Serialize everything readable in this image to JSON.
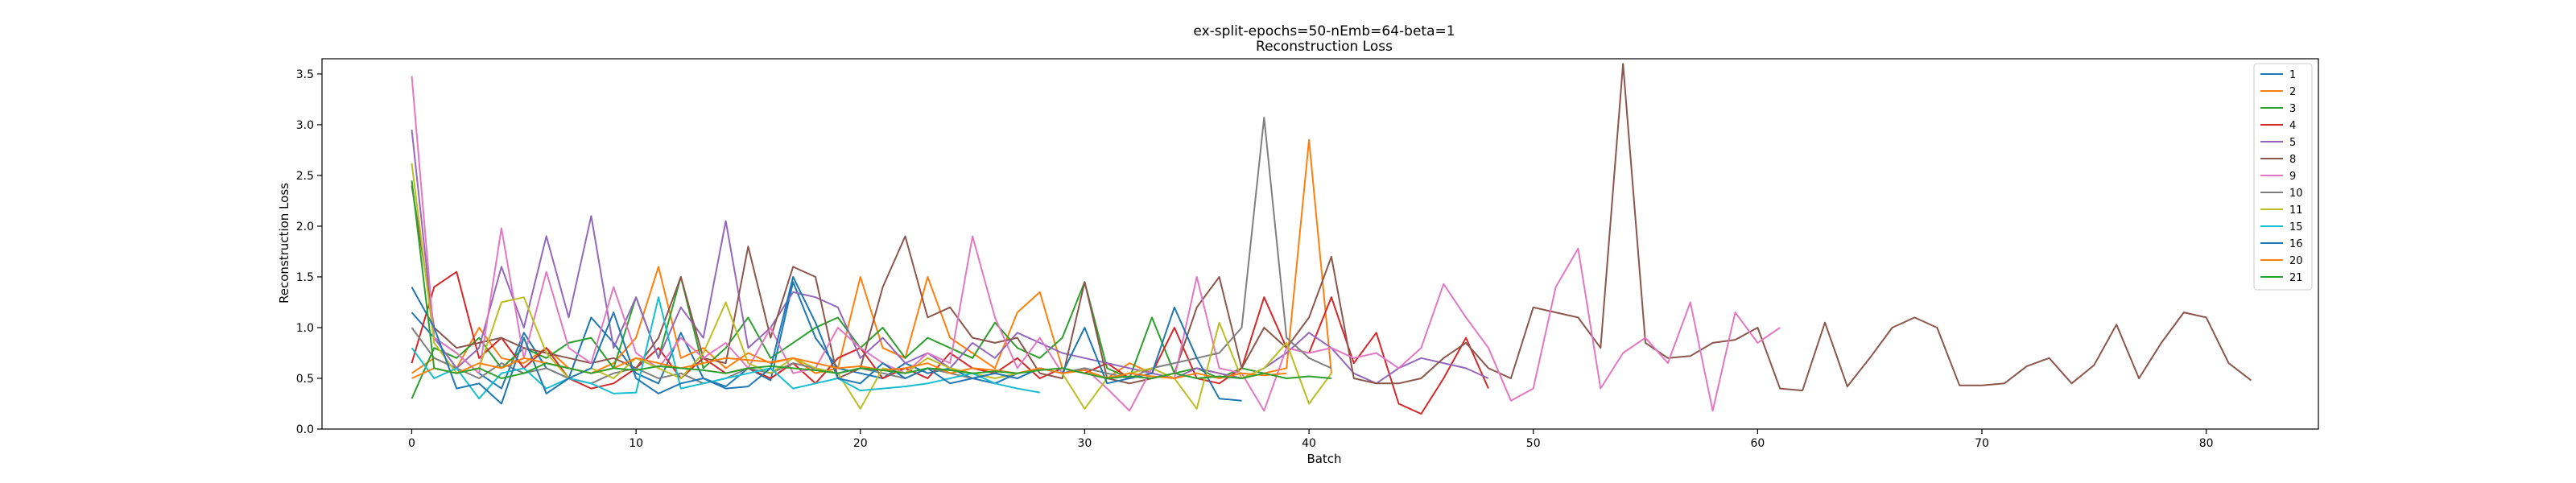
{
  "chart_data": {
    "type": "line",
    "title": "ex-split-epochs=50-nEmb=64-beta=1",
    "subtitle": "Reconstruction Loss",
    "xlabel": "Batch",
    "ylabel": "Reconstruction Loss",
    "xlim": [
      -4,
      85
    ],
    "ylim": [
      0,
      3.65
    ],
    "xticks": [
      0,
      10,
      20,
      30,
      40,
      50,
      60,
      70,
      80
    ],
    "yticks": [
      0.0,
      0.5,
      1.0,
      1.5,
      2.0,
      2.5,
      3.0,
      3.5
    ],
    "xtick_labels": [
      "0",
      "10",
      "20",
      "30",
      "40",
      "50",
      "60",
      "70",
      "80"
    ],
    "ytick_labels": [
      "0.0",
      "0.5",
      "1.0",
      "1.5",
      "2.0",
      "2.5",
      "3.0",
      "3.5"
    ],
    "grid": false,
    "legend_position": "top-right",
    "series": [
      {
        "name": "1",
        "color": "#1f77b4",
        "values": [
          1.15,
          0.9,
          0.75,
          0.55,
          0.4,
          0.95,
          0.6,
          0.5,
          1.1,
          0.85,
          0.55,
          0.45,
          0.95,
          0.5,
          0.42,
          0.6,
          0.48,
          1.45,
          0.9,
          0.6,
          0.55,
          0.5,
          0.65,
          0.55,
          0.6,
          0.5,
          0.45,
          0.55
        ]
      },
      {
        "name": "2",
        "color": "#ff7f0e",
        "values": [
          0.55,
          0.7,
          0.6,
          1.0,
          0.7,
          0.65,
          0.8,
          0.6,
          0.55,
          0.65,
          0.9,
          1.6,
          0.7,
          0.8,
          0.6,
          0.75,
          0.65,
          0.7,
          0.55,
          0.6,
          1.5,
          0.8,
          0.7,
          1.5,
          0.9,
          0.75,
          0.6,
          1.15,
          1.35,
          0.6,
          0.55,
          0.5,
          0.65,
          0.55,
          0.5,
          0.6,
          0.55,
          0.5,
          0.55,
          0.6,
          2.85,
          0.55
        ]
      },
      {
        "name": "3",
        "color": "#2ca02c",
        "values": [
          0.3,
          0.8,
          0.7,
          0.9,
          0.6,
          0.8,
          0.7,
          0.85,
          0.9,
          0.6,
          1.3,
          0.7,
          1.5,
          0.6,
          0.8,
          1.1,
          0.7,
          0.85,
          1.0,
          1.1,
          0.8,
          1.0,
          0.7,
          0.9,
          0.8,
          0.7,
          1.05,
          0.8,
          0.7,
          0.9,
          1.45,
          0.6,
          0.5,
          1.1,
          0.55,
          0.6,
          0.5,
          0.6,
          0.55
        ]
      },
      {
        "name": "4",
        "color": "#d62728",
        "values": [
          0.65,
          1.4,
          1.55,
          0.7,
          0.9,
          0.6,
          0.8,
          0.5,
          0.4,
          0.45,
          0.6,
          0.8,
          0.5,
          0.7,
          0.55,
          0.6,
          0.5,
          0.65,
          0.45,
          0.7,
          0.8,
          0.5,
          0.6,
          0.5,
          0.75,
          0.6,
          0.55,
          0.7,
          0.5,
          0.6,
          0.55,
          0.65,
          0.5,
          0.55,
          1.0,
          0.5,
          0.45,
          0.6,
          1.3,
          0.8,
          0.75,
          1.3,
          0.65,
          0.95,
          0.25,
          0.15,
          0.5,
          0.9,
          0.4
        ]
      },
      {
        "name": "5",
        "color": "#9467bd",
        "values": [
          2.95,
          0.9,
          0.6,
          0.8,
          1.6,
          1.0,
          1.9,
          1.1,
          2.1,
          0.8,
          1.3,
          0.7,
          1.2,
          0.9,
          2.05,
          0.8,
          1.0,
          1.35,
          1.3,
          1.2,
          0.7,
          0.9,
          0.65,
          0.75,
          0.6,
          0.85,
          0.7,
          0.95,
          0.85,
          0.75,
          0.7,
          0.65,
          0.6,
          0.55,
          0.5,
          0.6,
          0.55,
          0.5,
          0.6,
          0.75,
          0.95,
          0.8,
          0.55,
          0.45,
          0.6,
          0.7,
          0.65,
          0.6,
          0.5
        ]
      },
      {
        "name": "8",
        "color": "#8c564b",
        "values": [
          2.4,
          1.0,
          0.8,
          0.85,
          0.9,
          0.8,
          0.75,
          0.7,
          0.65,
          0.7,
          0.6,
          0.9,
          1.5,
          0.7,
          0.65,
          1.8,
          0.9,
          1.6,
          1.5,
          0.5,
          0.6,
          1.4,
          1.9,
          1.1,
          1.2,
          0.9,
          0.85,
          0.9,
          0.55,
          0.5,
          1.45,
          0.5,
          0.45,
          0.5,
          0.55,
          1.2,
          1.5,
          0.6,
          1.0,
          0.8,
          1.1,
          1.7,
          0.5,
          0.45,
          0.45,
          0.5,
          0.7,
          0.85,
          0.6,
          0.5,
          1.2,
          1.15,
          1.1,
          0.8,
          3.6,
          0.85,
          0.7,
          0.72,
          0.85,
          0.88,
          1.0,
          0.4,
          0.38,
          1.05,
          0.42,
          0.7,
          1.0,
          1.1,
          1.0,
          0.43,
          0.43,
          0.45,
          0.62,
          0.7,
          0.45,
          0.63,
          1.03,
          0.5,
          0.85,
          1.15,
          1.1,
          0.65,
          0.48
        ]
      },
      {
        "name": "9",
        "color": "#e377c2",
        "values": [
          3.48,
          0.9,
          0.75,
          0.55,
          1.98,
          0.7,
          1.55,
          0.8,
          0.65,
          1.4,
          0.75,
          0.6,
          0.9,
          0.7,
          0.85,
          0.6,
          1.0,
          0.55,
          0.6,
          1.0,
          0.8,
          0.65,
          0.55,
          0.75,
          0.65,
          1.9,
          1.1,
          0.6,
          0.9,
          0.55,
          0.6,
          0.4,
          0.18,
          0.6,
          0.5,
          1.5,
          0.6,
          0.55,
          0.18,
          0.8,
          0.75,
          0.8,
          0.7,
          0.75,
          0.6,
          0.8,
          1.43,
          1.1,
          0.8,
          0.28,
          0.4,
          1.4,
          1.78,
          0.4,
          0.75,
          0.9,
          0.65,
          1.25,
          0.18,
          1.15,
          0.85,
          1.0
        ]
      },
      {
        "name": "10",
        "color": "#7f7f7f",
        "values": [
          1.0,
          0.7,
          0.6,
          0.5,
          0.65,
          0.55,
          0.6,
          0.5,
          0.45,
          0.55,
          0.6,
          0.5,
          0.55,
          0.45,
          0.5,
          0.6,
          0.55,
          0.65,
          0.6,
          0.55,
          0.6,
          0.55,
          0.5,
          0.6,
          0.55,
          0.5,
          0.55,
          0.5,
          0.6,
          0.55,
          0.6,
          0.55,
          0.5,
          0.6,
          0.65,
          0.7,
          0.75,
          1.0,
          3.07,
          0.9,
          0.7,
          0.6
        ]
      },
      {
        "name": "11",
        "color": "#bcbd22",
        "values": [
          2.62,
          0.85,
          0.55,
          0.6,
          1.25,
          1.3,
          0.75,
          0.5,
          0.6,
          0.5,
          0.7,
          0.6,
          0.5,
          0.75,
          1.25,
          0.65,
          0.55,
          0.7,
          0.6,
          0.55,
          0.2,
          0.6,
          0.55,
          0.7,
          0.6,
          0.55,
          0.5,
          0.55,
          0.6,
          0.55,
          0.2,
          0.5,
          0.55,
          0.6,
          0.5,
          0.2,
          1.05,
          0.5,
          0.6,
          0.85,
          0.25,
          0.55
        ]
      },
      {
        "name": "15",
        "color": "#17becf",
        "values": [
          0.8,
          0.5,
          0.6,
          0.3,
          0.55,
          0.6,
          0.4,
          0.5,
          0.45,
          0.35,
          0.36,
          1.3,
          0.4,
          0.45,
          0.5,
          0.55,
          0.6,
          0.4,
          0.45,
          0.5,
          0.38,
          0.4,
          0.42,
          0.45,
          0.5,
          0.55,
          0.45,
          0.4,
          0.36
        ]
      },
      {
        "name": "16",
        "color": "#1f77b4",
        "values": [
          1.4,
          1.0,
          0.4,
          0.45,
          0.25,
          0.9,
          0.35,
          0.5,
          0.6,
          1.15,
          0.5,
          0.35,
          0.45,
          0.5,
          0.4,
          0.42,
          0.6,
          1.5,
          1.05,
          0.5,
          0.45,
          0.65,
          0.5,
          0.6,
          0.45,
          0.5,
          0.55,
          0.5,
          0.6,
          0.55,
          1.0,
          0.45,
          0.5,
          0.55,
          1.2,
          0.7,
          0.3,
          0.28
        ]
      },
      {
        "name": "20",
        "color": "#ff7f0e",
        "values": [
          0.5,
          0.6,
          0.55,
          0.65,
          0.6,
          0.7,
          0.65,
          0.6,
          0.55,
          0.6,
          0.7,
          0.65,
          0.6,
          0.65,
          0.7,
          0.68,
          0.66,
          0.7,
          0.65,
          0.6,
          0.62,
          0.58,
          0.6,
          0.65,
          0.55,
          0.6,
          0.58,
          0.55,
          0.6,
          0.55,
          0.58,
          0.5,
          0.55,
          0.52,
          0.5,
          0.55,
          0.5,
          0.55,
          0.53,
          0.55
        ]
      },
      {
        "name": "21",
        "color": "#2ca02c",
        "values": [
          2.45,
          0.6,
          0.55,
          0.6,
          0.5,
          0.55,
          0.65,
          0.6,
          0.55,
          0.6,
          0.58,
          0.62,
          0.6,
          0.58,
          0.55,
          0.6,
          0.62,
          0.6,
          0.58,
          0.55,
          0.6,
          0.58,
          0.55,
          0.6,
          0.58,
          0.55,
          0.57,
          0.55,
          0.58,
          0.6,
          0.55,
          0.5,
          0.52,
          0.5,
          0.55,
          0.5,
          0.52,
          0.5,
          0.55,
          0.5,
          0.52,
          0.5
        ]
      }
    ]
  }
}
